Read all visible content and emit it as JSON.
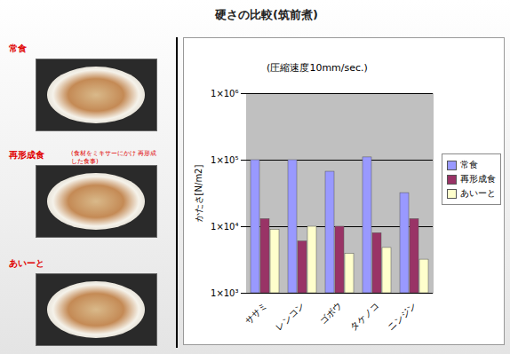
{
  "chart_data": {
    "type": "bar",
    "title": "硬さの比較(筑前煮)",
    "subtitle": "(圧縮速度10mm/sec.)",
    "y_label": "かたさ[N/m2]",
    "categories": [
      "ササミ",
      "レンコン",
      "ゴボウ",
      "タケノコ",
      "ニンジン"
    ],
    "series": [
      {
        "name": "常食",
        "color": "#9999ff",
        "values": [
          100000,
          100000,
          67000,
          110000,
          32000
        ]
      },
      {
        "name": "再形成食",
        "color": "#993366",
        "values": [
          13000,
          6000,
          10000,
          8000,
          13000
        ]
      },
      {
        "name": "あいーと",
        "color": "#ffffcc",
        "values": [
          9000,
          10000,
          3900,
          4800,
          3200
        ]
      }
    ],
    "log": "y",
    "ylim": [
      1000,
      1000000
    ],
    "yticks": [
      {
        "value": 1000,
        "label": "1×10³"
      },
      {
        "value": 10000,
        "label": "1×10⁴"
      },
      {
        "value": 100000,
        "label": "1×10⁵"
      },
      {
        "value": 1000000,
        "label": "1×10⁶"
      }
    ],
    "grid": true,
    "legend": "right"
  },
  "photos": [
    {
      "label": "常食"
    },
    {
      "label": "再形成食",
      "note": "(食材をミキサーにかけ 再形成した食事)"
    },
    {
      "label": "あいーと"
    }
  ]
}
